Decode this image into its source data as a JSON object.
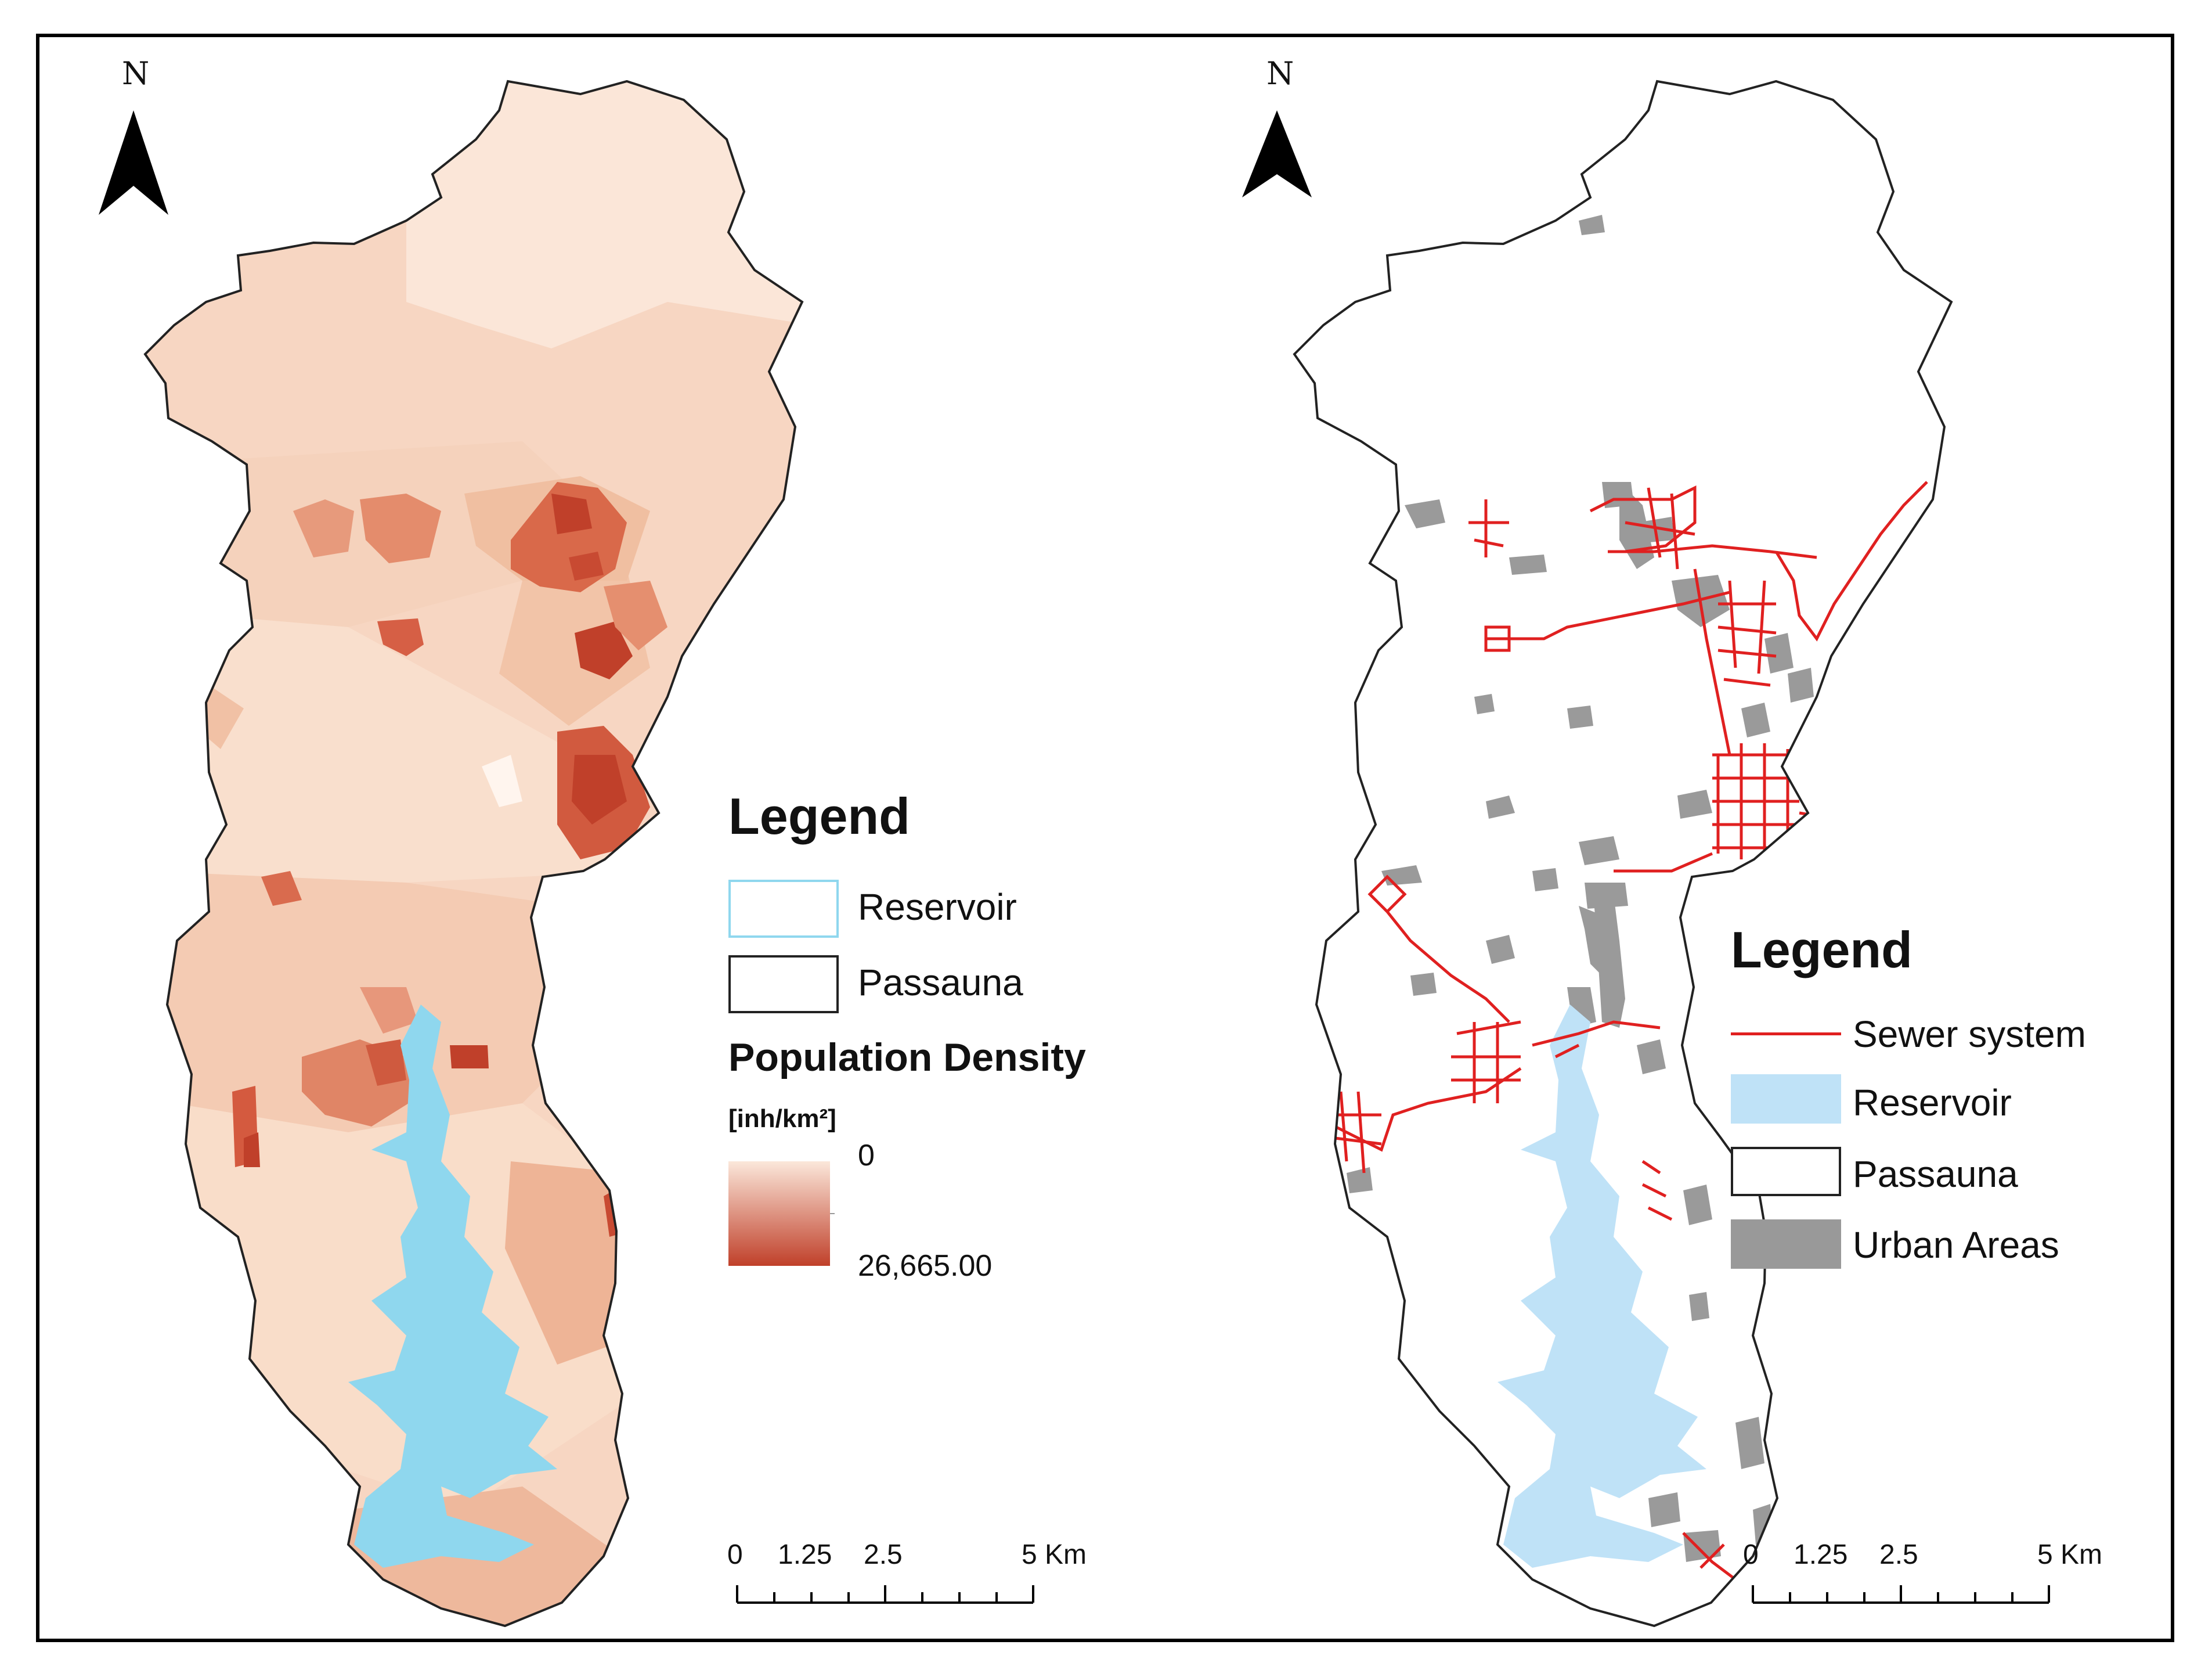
{
  "north_label": "N",
  "left_map": {
    "legend_title": "Legend",
    "items": [
      {
        "label": "Reservoir",
        "color": "#8fd7ee"
      },
      {
        "label": "Passauna",
        "color": "#ffffff"
      }
    ],
    "density_title": "Population Density",
    "density_unit": "[inh/km²]",
    "density_min": "0",
    "density_max": "26,665.00",
    "ramp_colors": [
      "#fbe7da",
      "#c0402a"
    ],
    "scale_labels": [
      "0",
      "1.25",
      "2.5",
      "5 Km"
    ]
  },
  "right_map": {
    "legend_title": "Legend",
    "items": [
      {
        "label": "Sewer system",
        "color": "#e02020"
      },
      {
        "label": "Reservoir",
        "color": "#bfe2f7"
      },
      {
        "label": "Passauna",
        "color": "#ffffff"
      },
      {
        "label": "Urban Areas",
        "color": "#999999"
      }
    ],
    "scale_labels": [
      "0",
      "1.25",
      "2.5",
      "5 Km"
    ]
  }
}
